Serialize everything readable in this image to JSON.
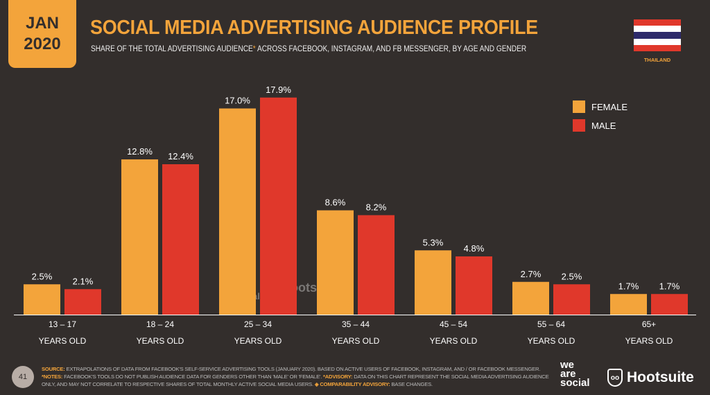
{
  "date": {
    "month": "JAN",
    "year": "2020"
  },
  "title": "SOCIAL MEDIA ADVERTISING AUDIENCE PROFILE",
  "subtitle": {
    "pre": "SHARE OF THE TOTAL ADVERTISING AUDIENCE",
    "ast": "*",
    "post": " ACROSS FACEBOOK, INSTAGRAM, AND FB MESSENGER, BY AGE AND GENDER"
  },
  "country": "THAILAND",
  "colors": {
    "female": "#f3a43b",
    "male": "#e0382b",
    "background": "#332e2c"
  },
  "chart_data": {
    "type": "bar",
    "title": "SOCIAL MEDIA ADVERTISING AUDIENCE PROFILE",
    "categories": [
      [
        "13 – 17",
        "YEARS OLD"
      ],
      [
        "18 – 24",
        "YEARS OLD"
      ],
      [
        "25 – 34",
        "YEARS OLD"
      ],
      [
        "35 – 44",
        "YEARS OLD"
      ],
      [
        "45 – 54",
        "YEARS OLD"
      ],
      [
        "55 – 64",
        "YEARS OLD"
      ],
      [
        "65+",
        "YEARS OLD"
      ]
    ],
    "series": [
      {
        "name": "FEMALE",
        "values": [
          2.5,
          12.8,
          17.0,
          8.6,
          5.3,
          2.7,
          1.7
        ],
        "labels": [
          "2.5%",
          "12.8%",
          "17.0%",
          "8.6%",
          "5.3%",
          "2.7%",
          "1.7%"
        ]
      },
      {
        "name": "MALE",
        "values": [
          2.1,
          12.4,
          17.9,
          8.2,
          4.8,
          2.5,
          1.7
        ],
        "labels": [
          "2.1%",
          "12.4%",
          "17.9%",
          "8.2%",
          "4.8%",
          "2.5%",
          "1.7%"
        ]
      }
    ],
    "legend": "top-right",
    "unit": "%",
    "grid": false
  },
  "watermark": {
    "we_are_social": "we are social",
    "hootsuite": "Hootsuite"
  },
  "footer": {
    "page": "41",
    "source_label": "SOURCE:",
    "source": " EXTRAPOLATIONS OF DATA FROM FACEBOOK'S SELF-SERVICE ADVERTISING TOOLS (JANUARY 2020). BASED ON ACTIVE USERS OF FACEBOOK, INSTAGRAM, AND / OR FACEBOOK MESSENGER. ",
    "notes_label": "*NOTES:",
    "notes": " FACEBOOK'S TOOLS DO NOT PUBLISH AUDIENCE DATA FOR GENDERS OTHER THAN 'MALE' OR 'FEMALE'. ",
    "advisory_label": "*ADVISORY:",
    "advisory": " DATA ON THIS CHART REPRESENT THE SOCIAL MEDIA ADVERTISING AUDIENCE ONLY, AND MAY NOT CORRELATE TO RESPECTIVE SHARES OF TOTAL MONTHLY ACTIVE SOCIAL MEDIA USERS. ",
    "comparability_label": "◈ COMPARABILITY ADVISORY:",
    "comparability": " BASE CHANGES.",
    "logo1": [
      "we",
      "are",
      "social"
    ],
    "logo2": "Hootsuite"
  }
}
